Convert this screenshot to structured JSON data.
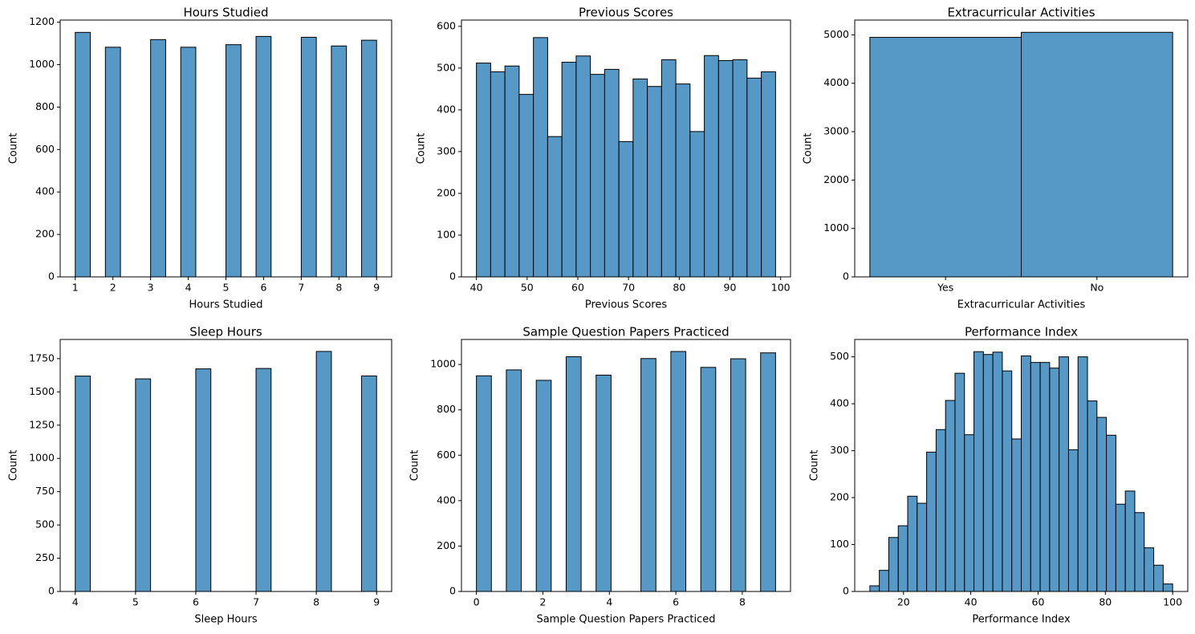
{
  "chart_data": [
    {
      "type": "histogram",
      "title": "Hours Studied",
      "xlabel": "Hours Studied",
      "ylabel": "Count",
      "color": "#5698c6",
      "bins": [
        1,
        1.4,
        1.8,
        2.2,
        2.6,
        3,
        3.4,
        3.8,
        4.2,
        4.6,
        5,
        5.4,
        5.8,
        6.2,
        6.6,
        7,
        7.4,
        7.8,
        8.2,
        8.6,
        9
      ],
      "values": [
        1152,
        0,
        1082,
        0,
        0,
        1118,
        0,
        1082,
        0,
        0,
        1094,
        0,
        1133,
        0,
        0,
        1129,
        0,
        1088,
        0,
        1115
      ],
      "xlim": [
        0.6,
        9.4
      ],
      "xticks": [
        1,
        2,
        3,
        4,
        5,
        6,
        7,
        8,
        9
      ],
      "ylim": [
        0,
        1210
      ],
      "yticks": [
        0,
        200,
        400,
        600,
        800,
        1000,
        1200
      ]
    },
    {
      "type": "histogram",
      "title": "Previous Scores",
      "xlabel": "Previous Scores",
      "ylabel": "Count",
      "color": "#5698c6",
      "bins": [
        40,
        42.81,
        45.62,
        48.43,
        51.24,
        54.05,
        56.86,
        59.67,
        62.48,
        65.29,
        68.1,
        70.9,
        73.71,
        76.52,
        79.33,
        82.14,
        84.95,
        87.76,
        90.57,
        93.38,
        96.19,
        99
      ],
      "values": [
        512,
        491,
        505,
        437,
        573,
        336,
        514,
        529,
        485,
        497,
        324,
        474,
        456,
        520,
        462,
        348,
        530,
        518,
        520,
        476,
        491
      ],
      "xlim": [
        37.05,
        101.95
      ],
      "xticks": [
        40,
        50,
        60,
        70,
        80,
        90,
        100
      ],
      "ylim": [
        0,
        615
      ],
      "yticks": [
        0,
        100,
        200,
        300,
        400,
        500,
        600
      ]
    },
    {
      "type": "bar",
      "title": "Extracurricular Activities",
      "xlabel": "Extracurricular Activities",
      "ylabel": "Count",
      "color": "#5698c6",
      "categories": [
        "Yes",
        "No"
      ],
      "values": [
        4948,
        5052
      ],
      "ylim": [
        0,
        5305
      ],
      "yticks": [
        0,
        1000,
        2000,
        3000,
        4000,
        5000
      ]
    },
    {
      "type": "histogram",
      "title": "Sleep Hours",
      "xlabel": "Sleep Hours",
      "ylabel": "Count",
      "color": "#5698c6",
      "bins": [
        4,
        4.25,
        4.5,
        4.75,
        5,
        5.25,
        5.5,
        5.75,
        6,
        6.25,
        6.5,
        6.75,
        7,
        7.25,
        7.5,
        7.75,
        8,
        8.25,
        8.5,
        8.75,
        9
      ],
      "values": [
        1619,
        0,
        0,
        0,
        1598,
        0,
        0,
        0,
        1673,
        0,
        0,
        0,
        1676,
        0,
        0,
        0,
        1804,
        0,
        0,
        1620
      ],
      "xlim": [
        3.75,
        9.25
      ],
      "xticks": [
        4,
        5,
        6,
        7,
        8,
        9
      ],
      "ylim": [
        0,
        1894
      ],
      "yticks": [
        0,
        250,
        500,
        750,
        1000,
        1250,
        1500,
        1750
      ]
    },
    {
      "type": "histogram",
      "title": "Sample Question Papers Practiced",
      "xlabel": "Sample Question Papers Practiced",
      "ylabel": "Count",
      "color": "#5698c6",
      "bins": [
        0,
        0.45,
        0.9,
        1.35,
        1.8,
        2.25,
        2.7,
        3.15,
        3.6,
        4.05,
        4.5,
        4.95,
        5.4,
        5.85,
        6.3,
        6.75,
        7.2,
        7.65,
        8.1,
        8.55,
        9
      ],
      "values": [
        950,
        0,
        976,
        0,
        930,
        0,
        1034,
        0,
        953,
        0,
        0,
        1026,
        0,
        1057,
        0,
        987,
        0,
        1025,
        0,
        1051
      ],
      "xlim": [
        -0.45,
        9.45
      ],
      "xticks": [
        0,
        2,
        4,
        6,
        8
      ],
      "ylim": [
        0,
        1110
      ],
      "yticks": [
        0,
        200,
        400,
        600,
        800,
        1000
      ]
    },
    {
      "type": "histogram",
      "title": "Performance Index",
      "xlabel": "Performance Index",
      "ylabel": "Count",
      "color": "#5698c6",
      "bins": [
        10,
        12.8125,
        15.625,
        18.4375,
        21.25,
        24.0625,
        26.875,
        29.6875,
        32.5,
        35.3125,
        38.125,
        40.9375,
        43.75,
        46.5625,
        49.375,
        52.1875,
        55,
        57.8125,
        60.625,
        63.4375,
        66.25,
        69.0625,
        71.875,
        74.6875,
        77.5,
        80.3125,
        83.125,
        85.9375,
        88.75,
        91.5625,
        94.375,
        97.1875,
        100
      ],
      "values": [
        12,
        45,
        115,
        140,
        203,
        188,
        297,
        345,
        407,
        465,
        334,
        511,
        505,
        510,
        470,
        325,
        502,
        488,
        488,
        476,
        500,
        302,
        500,
        406,
        371,
        333,
        186,
        214,
        168,
        93,
        56,
        16
      ],
      "xlim": [
        5.5,
        104.5
      ],
      "xticks": [
        20,
        40,
        60,
        80,
        100
      ],
      "ylim": [
        0,
        537
      ],
      "yticks": [
        0,
        100,
        200,
        300,
        400,
        500
      ]
    }
  ]
}
